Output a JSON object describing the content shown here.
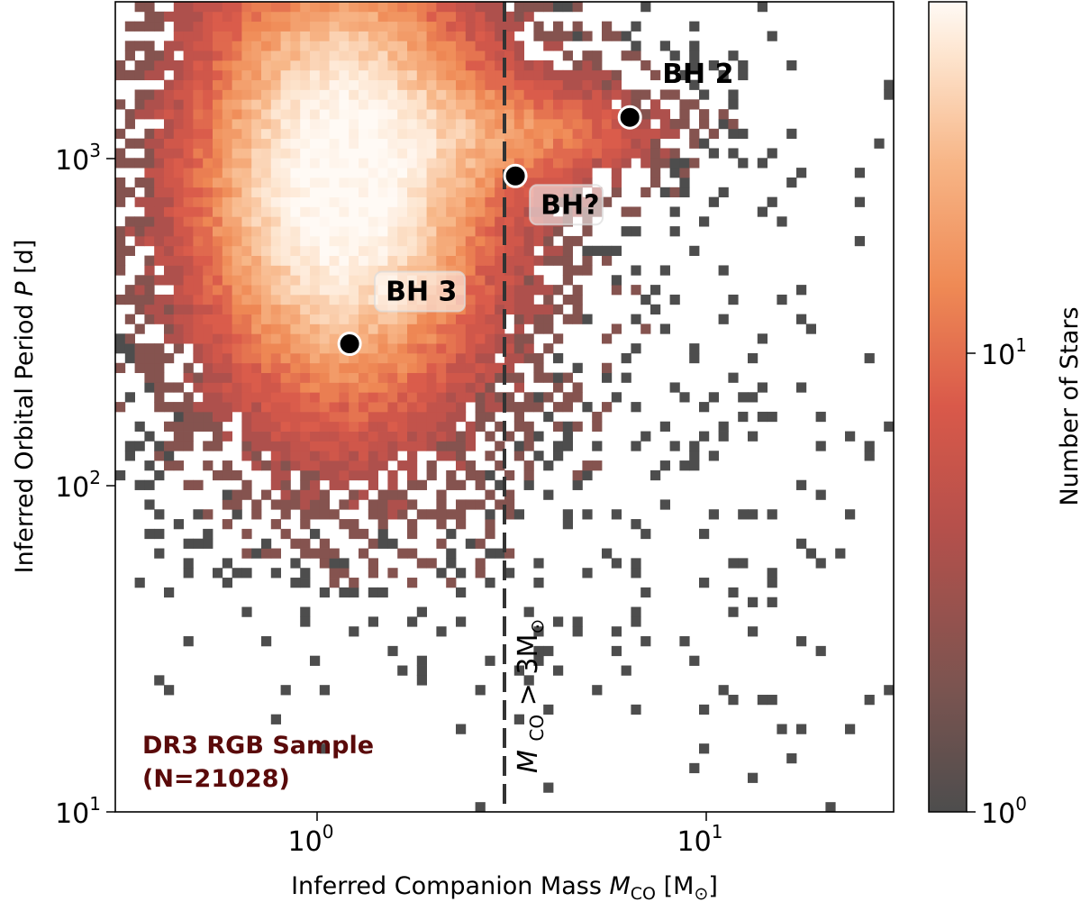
{
  "chart_data": {
    "type": "heatmap",
    "xlabel": "Inferred Companion Mass M_CO [M_⊙]",
    "ylabel": "Inferred Orbital Period P [d]",
    "x_scale": "log",
    "y_scale": "log",
    "xlim": [
      0.3,
      30
    ],
    "ylim": [
      10,
      3000
    ],
    "x_ticks": [
      {
        "value": 1,
        "label": "10^0"
      },
      {
        "value": 10,
        "label": "10^1"
      }
    ],
    "y_ticks": [
      {
        "value": 10,
        "label": "10^1"
      },
      {
        "value": 100,
        "label": "10^2"
      },
      {
        "value": 1000,
        "label": "10^3"
      }
    ],
    "colorbar": {
      "label": "Number of Stars",
      "scale": "log",
      "range": [
        1,
        60
      ],
      "ticks": [
        {
          "value": 1,
          "label": "10^0"
        },
        {
          "value": 10,
          "label": "10^1"
        }
      ],
      "colors": [
        "#4d4d4d",
        "#7a5450",
        "#b5504b",
        "#d9594a",
        "#ef8a55",
        "#f7b586",
        "#fde3cc",
        "#fffaf5"
      ]
    },
    "density_peak": {
      "mass": 1.15,
      "period": 850
    },
    "threshold": {
      "x": 3,
      "label_main": "M_CO > 3M",
      "label_sub": "CO",
      "label_sym": "⊙",
      "style": "dashed"
    },
    "highlighted_points": [
      {
        "label": "BH 2",
        "mass": 6.3,
        "period": 1330
      },
      {
        "label": "BH?",
        "mass": 3.2,
        "period": 880
      },
      {
        "label": "BH 3",
        "mass": 1.2,
        "period": 270
      }
    ],
    "annotation": {
      "line1": "DR3 RGB Sample",
      "line2": "(N=21028)",
      "color": "#5a0a0a"
    }
  },
  "text": {
    "x_tick_1": "10",
    "x_tick_1_exp": "0",
    "x_tick_2": "10",
    "x_tick_2_exp": "1",
    "y_tick_1": "10",
    "y_tick_1_exp": "1",
    "y_tick_2": "10",
    "y_tick_2_exp": "2",
    "y_tick_3": "10",
    "y_tick_3_exp": "3",
    "cb_tick_1": "10",
    "cb_tick_1_exp": "0",
    "cb_tick_2": "10",
    "cb_tick_2_exp": "1",
    "xlabel_pre": "Inferred Companion Mass ",
    "xlabel_var": "M",
    "xlabel_sub": "CO",
    "xlabel_unit_open": " [M",
    "xlabel_unit_sym": "⊙",
    "xlabel_unit_close": "]",
    "ylabel_pre": "Inferred Orbital Period ",
    "ylabel_var": "P",
    "ylabel_unit": " [d]",
    "colorbar_label": "Number of Stars"
  }
}
